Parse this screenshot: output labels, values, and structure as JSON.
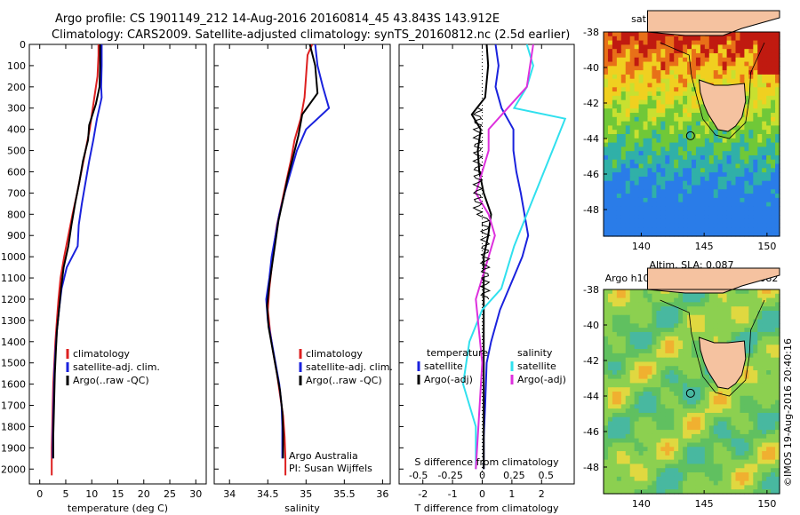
{
  "titles": {
    "line1": "Argo profile: CS 1901149_212 14-Aug-2016 20160814_45 43.843S 143.912E",
    "line2": "Climatology: CARS2009. Satellite-adjusted climatology: synTS_20160812.nc (2.5d earlier)"
  },
  "colors": {
    "climatology": "#dd2020",
    "satellite": "#1a22dd",
    "argo": "#000000",
    "satellite_s": "#30e0ee",
    "argo_s": "#dd30dd"
  },
  "chart_data": [
    {
      "type": "line",
      "name": "temperature-profile",
      "xlabel": "temperature (deg C)",
      "ylabel": "",
      "xlim": [
        -2,
        32
      ],
      "ylim": [
        2070,
        0
      ],
      "xticks": [
        0,
        5,
        10,
        15,
        20,
        25,
        30
      ],
      "yticks": [
        0,
        100,
        200,
        300,
        400,
        500,
        600,
        700,
        800,
        900,
        1000,
        1100,
        1200,
        1300,
        1400,
        1500,
        1600,
        1700,
        1800,
        1900,
        2000
      ],
      "legend": [
        "climatology",
        "satellite-adj. clim.",
        "Argo(..raw -QC)"
      ],
      "series": [
        {
          "name": "climatology",
          "color": "#dd2020",
          "x": [
            11.3,
            11.3,
            11.1,
            10.8,
            10.2,
            9.6,
            8.8,
            8.0,
            7.2,
            6.3,
            5.5,
            4.7,
            4.0,
            3.6,
            3.3,
            3.0,
            2.8,
            2.6,
            2.5,
            2.4,
            2.3,
            2.3
          ],
          "y": [
            0,
            50,
            150,
            200,
            300,
            400,
            500,
            600,
            700,
            800,
            900,
            1000,
            1100,
            1200,
            1300,
            1400,
            1500,
            1600,
            1700,
            1800,
            1900,
            2030
          ]
        },
        {
          "name": "satellite-adj. clim.",
          "color": "#1a22dd",
          "x": [
            11.9,
            11.9,
            11.8,
            11.9,
            11.0,
            10.3,
            9.5,
            8.8,
            8.1,
            7.5,
            7.3,
            5.2,
            4.2,
            3.7,
            3.3,
            3.0,
            2.8,
            2.7,
            2.6,
            2.5,
            2.5
          ],
          "y": [
            0,
            100,
            200,
            250,
            350,
            450,
            550,
            650,
            750,
            850,
            950,
            1050,
            1150,
            1250,
            1350,
            1450,
            1550,
            1650,
            1750,
            1850,
            1950
          ]
        },
        {
          "name": "Argo(..raw -QC)",
          "color": "#000000",
          "x": [
            11.6,
            11.6,
            11.5,
            10.8,
            9.5,
            9.3,
            8.3,
            7.6,
            6.8,
            6.1,
            5.5,
            4.6,
            4.1,
            3.7,
            3.3,
            3.1,
            2.9,
            2.8,
            2.7,
            2.6,
            2.6
          ],
          "y": [
            0,
            100,
            200,
            280,
            380,
            450,
            550,
            650,
            750,
            850,
            950,
            1050,
            1150,
            1250,
            1350,
            1450,
            1550,
            1650,
            1750,
            1850,
            1950
          ]
        }
      ]
    },
    {
      "type": "line",
      "name": "salinity-profile",
      "xlabel": "salinity",
      "xlim": [
        33.8,
        36.1
      ],
      "ylim": [
        2070,
        0
      ],
      "xticks": [
        34,
        34.5,
        35,
        35.5,
        36
      ],
      "legend": [
        "climatology",
        "satellite-adj. clim.",
        "Argo(..raw -QC)"
      ],
      "annotation": [
        "Argo Australia",
        "PI: Susan Wijffels"
      ],
      "series": [
        {
          "name": "climatology",
          "color": "#dd2020",
          "x": [
            35.08,
            35.02,
            35.0,
            34.98,
            34.93,
            34.85,
            34.8,
            34.74,
            34.68,
            34.62,
            34.58,
            34.55,
            34.52,
            34.5,
            34.53,
            34.57,
            34.62,
            34.66,
            34.7,
            34.72,
            34.73,
            34.73
          ],
          "y": [
            0,
            50,
            150,
            250,
            350,
            450,
            550,
            650,
            750,
            850,
            950,
            1050,
            1150,
            1250,
            1350,
            1450,
            1550,
            1650,
            1750,
            1850,
            1950,
            2030
          ]
        },
        {
          "name": "satellite-adj. clim.",
          "color": "#1a22dd",
          "x": [
            35.12,
            35.15,
            35.22,
            35.3,
            35.0,
            34.88,
            34.8,
            34.72,
            34.65,
            34.6,
            34.55,
            34.52,
            34.48,
            34.5,
            34.55,
            34.6,
            34.65,
            34.68,
            34.69,
            34.69
          ],
          "y": [
            0,
            100,
            200,
            300,
            400,
            500,
            600,
            700,
            800,
            900,
            1000,
            1100,
            1200,
            1300,
            1400,
            1500,
            1600,
            1700,
            1800,
            1950
          ]
        },
        {
          "name": "Argo(..raw -QC)",
          "color": "#000000",
          "x": [
            35.05,
            35.12,
            35.15,
            34.95,
            34.9,
            34.83,
            34.76,
            34.7,
            34.64,
            34.6,
            34.56,
            34.52,
            34.49,
            34.51,
            34.56,
            34.61,
            34.66,
            34.69,
            34.7,
            34.7
          ],
          "y": [
            0,
            100,
            230,
            330,
            430,
            530,
            630,
            730,
            830,
            930,
            1030,
            1130,
            1230,
            1330,
            1430,
            1530,
            1630,
            1730,
            1830,
            1950
          ]
        }
      ]
    },
    {
      "type": "line",
      "name": "difference-profile",
      "xlabel": "T difference from climatology",
      "x2label": "S difference from climatology",
      "xlim": [
        -2.8,
        3.1
      ],
      "ylim": [
        2070,
        0
      ],
      "xticks": [
        -2,
        -1,
        0,
        1,
        2
      ],
      "x2ticks": [
        -0.5,
        -0.25,
        0,
        0.25,
        0.5
      ],
      "legend_t": [
        "temperature",
        "satellite",
        "Argo(-adj)"
      ],
      "legend_s": [
        "salinity",
        "satellite",
        "Argo(-adj)"
      ],
      "series": [
        {
          "name": "satellite",
          "group": "temperature",
          "color": "#1a22dd",
          "x": [
            0.45,
            0.55,
            0.45,
            0.65,
            1.05,
            1.05,
            1.15,
            1.3,
            1.55,
            1.35,
            1.05,
            0.6,
            0.3,
            0.15,
            0.1,
            0.05,
            0.05
          ],
          "y": [
            0,
            100,
            200,
            300,
            400,
            500,
            600,
            700,
            900,
            1000,
            1100,
            1250,
            1400,
            1500,
            1700,
            1850,
            2000
          ]
        },
        {
          "name": "Argo(-adj)",
          "group": "temperature",
          "color": "#000000",
          "x": [
            0.15,
            0.2,
            0.1,
            -0.35,
            -0.05,
            -0.15,
            -0.1,
            0.05,
            0.3,
            0.2,
            0.05,
            0.05,
            0.05,
            0.05,
            0.05,
            0.05
          ],
          "y": [
            0,
            100,
            250,
            330,
            400,
            500,
            600,
            700,
            800,
            900,
            1000,
            1200,
            1400,
            1600,
            1800,
            2000
          ]
        },
        {
          "name": "satellite",
          "group": "salinity",
          "color": "#30e0ee",
          "x": [
            0.35,
            0.4,
            0.35,
            0.25,
            0.65,
            0.55,
            0.45,
            0.35,
            0.25,
            0.2,
            0.15,
            0.0,
            -0.1,
            -0.15,
            -0.05,
            -0.05
          ],
          "y": [
            0,
            100,
            200,
            300,
            350,
            500,
            650,
            800,
            950,
            1050,
            1150,
            1250,
            1400,
            1600,
            1800,
            2000
          ]
        },
        {
          "name": "Argo(-adj)",
          "group": "salinity",
          "color": "#dd30dd",
          "x": [
            0.4,
            0.35,
            0.2,
            0.05,
            0.05,
            0.0,
            -0.05,
            0.05,
            0.1,
            0.05,
            -0.05,
            0.0,
            -0.05
          ],
          "y": [
            0,
            200,
            300,
            400,
            500,
            600,
            700,
            800,
            900,
            1000,
            1200,
            1500,
            2000
          ]
        }
      ]
    },
    {
      "type": "heatmap",
      "name": "sst-map",
      "title": "sat. SST: 11.7  Argo: 11.7",
      "xticks": [
        140,
        145,
        150
      ],
      "yticks": [
        -38,
        -40,
        -42,
        -44,
        -46,
        -48
      ],
      "xlim": [
        137,
        151
      ],
      "ylim": [
        -49.5,
        -38
      ],
      "argo_position": [
        143.912,
        -43.843
      ]
    },
    {
      "type": "heatmap",
      "name": "sla-map",
      "title": "Altim. SLA: 0.087",
      "subtitle": "Argo h1000: -0.023 h2000: -0.0082",
      "xticks": [
        140,
        145,
        150
      ],
      "yticks": [
        -38,
        -40,
        -42,
        -44,
        -46,
        -48
      ],
      "xlim": [
        137,
        151
      ],
      "ylim": [
        -49.5,
        -38
      ],
      "argo_position": [
        143.912,
        -43.843
      ]
    }
  ],
  "credit": "©IMOS 19-Aug-2016 20:40:16"
}
